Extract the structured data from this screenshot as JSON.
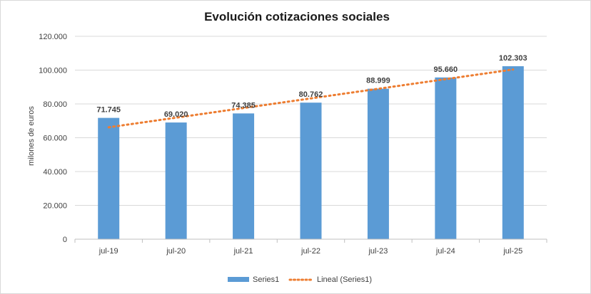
{
  "chart_data": {
    "type": "bar",
    "title": "Evolución cotizaciones sociales",
    "ylabel": "milones de euros",
    "xlabel": "",
    "categories": [
      "jul-19",
      "jul-20",
      "jul-21",
      "jul-22",
      "jul-23",
      "jul-24",
      "jul-25"
    ],
    "series": [
      {
        "name": "Series1",
        "values": [
          71745,
          69020,
          74385,
          80762,
          88999,
          95660,
          102303
        ],
        "labels": [
          "71.745",
          "69.020",
          "74.385",
          "80.762",
          "88.999",
          "95.660",
          "102.303"
        ],
        "color": "#5b9bd5"
      }
    ],
    "trendline": {
      "name": "Lineal (Series1)",
      "type": "linear",
      "color": "#ed7d31",
      "style": "dotted"
    },
    "ylim": [
      0,
      120000
    ],
    "yticks": [
      0,
      20000,
      40000,
      60000,
      80000,
      100000,
      120000
    ],
    "ytick_labels": [
      "0",
      "20.000",
      "40.000",
      "60.000",
      "80.000",
      "100.000",
      "120.000"
    ],
    "grid": true,
    "legend_position": "bottom"
  }
}
